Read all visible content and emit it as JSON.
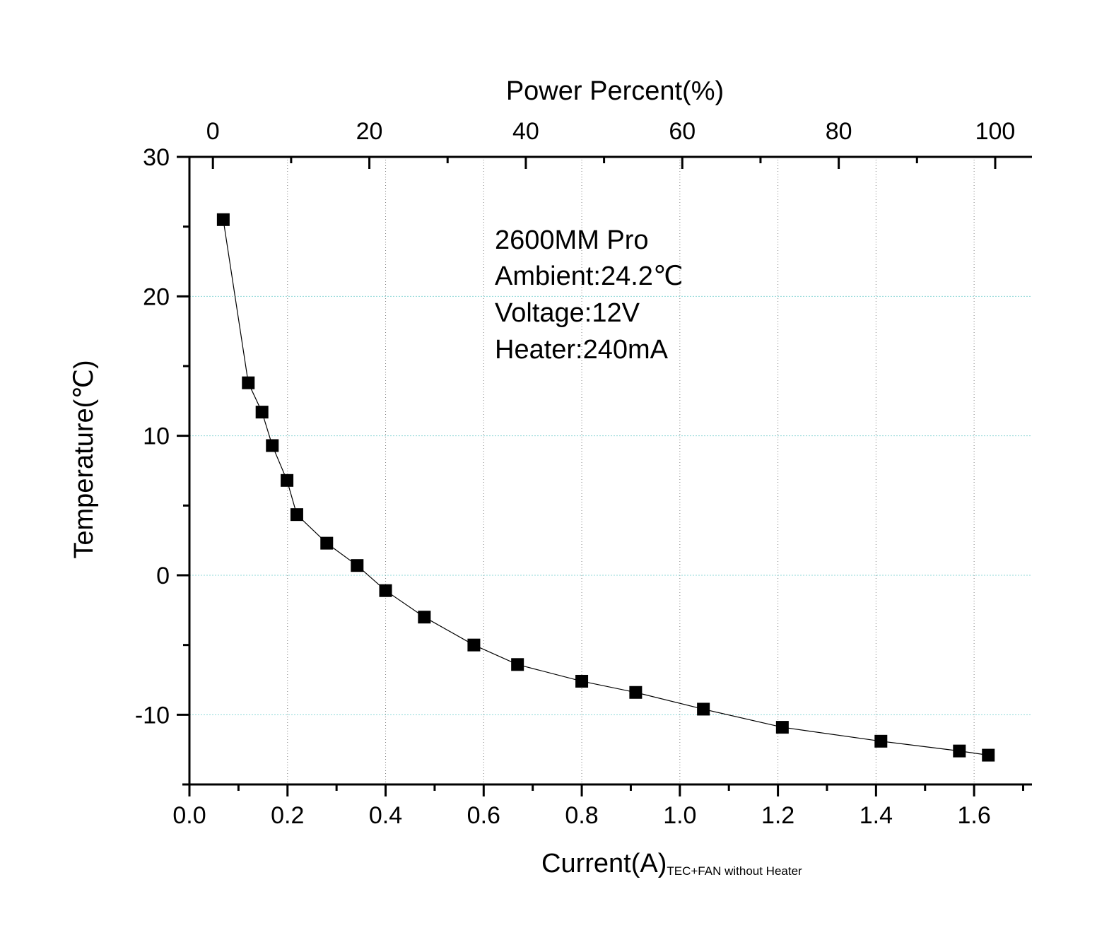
{
  "chart_data": {
    "type": "scatter",
    "line_connected": true,
    "marker": "square",
    "xlabel": "Current(A)",
    "xlabel_subscript": "TEC+FAN without Heater",
    "ylabel": "Temperature(℃)",
    "top_xlabel": "Power Percent(%)",
    "xlim": [
      0,
      1.718
    ],
    "ylim": [
      -15,
      30
    ],
    "top_xlim": [
      -3,
      104.7
    ],
    "x_ticks": [
      "0.0",
      "0.2",
      "0.4",
      "0.6",
      "0.8",
      "1.0",
      "1.2",
      "1.4",
      "1.6"
    ],
    "y_ticks": [
      "-10",
      "0",
      "10",
      "20",
      "30"
    ],
    "top_x_ticks": [
      "0",
      "20",
      "40",
      "60",
      "80",
      "100"
    ],
    "grid": true,
    "annotation": [
      "2600MM Pro",
      "Ambient:24.2℃",
      "Voltage:12V",
      "Heater:240mA"
    ],
    "colors": {
      "marker": "#000000",
      "line": "#000000",
      "xgrid": "#808080",
      "ygrid": "#8fd8d8"
    },
    "x": [
      0.069,
      0.12,
      0.148,
      0.169,
      0.199,
      0.219,
      0.28,
      0.342,
      0.4,
      0.479,
      0.58,
      0.669,
      0.8,
      0.91,
      1.048,
      1.209,
      1.41,
      1.57,
      1.629
    ],
    "y": [
      25.5,
      13.8,
      11.7,
      9.3,
      6.8,
      4.35,
      2.3,
      0.7,
      -1.1,
      -3.0,
      -5.0,
      -6.4,
      -7.6,
      -8.4,
      -9.6,
      -10.9,
      -11.9,
      -12.6,
      -12.9
    ]
  }
}
